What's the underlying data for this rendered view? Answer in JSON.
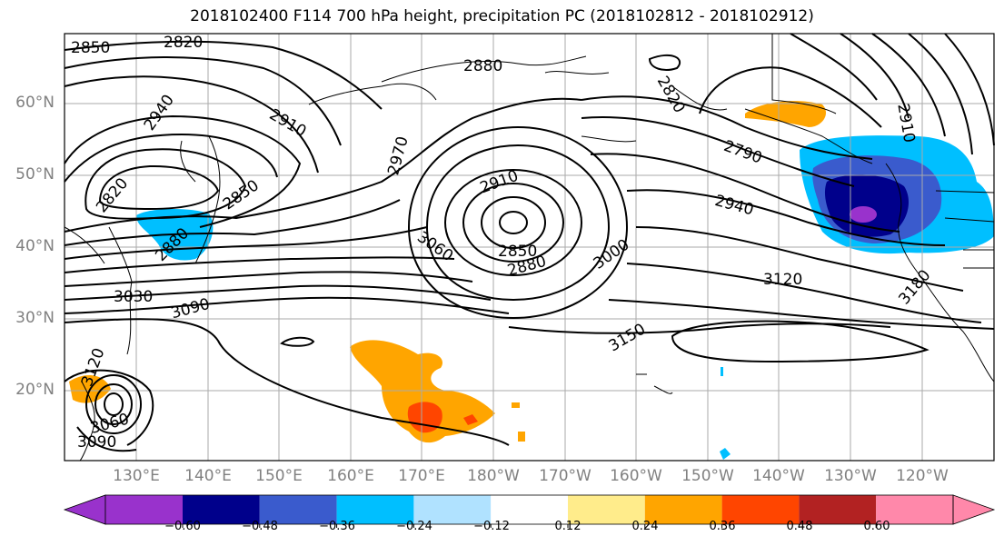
{
  "title": "2018102400 F114 700 hPa height, precipitation PC (2018102812 - 2018102912)",
  "lat_labels": [
    "60°N",
    "50°N",
    "40°N",
    "30°N",
    "20°N"
  ],
  "lon_labels": [
    "130°E",
    "140°E",
    "150°E",
    "160°E",
    "170°E",
    "180°W",
    "170°W",
    "160°W",
    "150°W",
    "140°W",
    "130°W",
    "120°W"
  ],
  "contour_labels": [
    "2850",
    "2820",
    "2880",
    "2820",
    "2940",
    "2910",
    "2970",
    "2910",
    "2790",
    "2910",
    "2820",
    "2850",
    "2880",
    "2940",
    "3060",
    "2850",
    "2880",
    "3000",
    "3120",
    "3180",
    "3030",
    "3090",
    "3150",
    "3120",
    "3060",
    "3090"
  ],
  "colorbar": {
    "ticks": [
      "−0.60",
      "−0.48",
      "−0.36",
      "−0.24",
      "−0.12",
      "0.12",
      "0.24",
      "0.36",
      "0.48",
      "0.60"
    ],
    "colors": [
      "#9932cc",
      "#00008b",
      "#3a5bcd",
      "#00bfff",
      "#b0e2ff",
      "#ffffff",
      "#ffec8b",
      "#ffa500",
      "#ff4500",
      "#b22222",
      "#ff88aa",
      "#ff88aa"
    ]
  },
  "field_colors": {
    "neg_light": "#00bfff",
    "neg_mid": "#3a5bcd",
    "neg_dark": "#00008b",
    "neg_extreme": "#9932cc",
    "pos_light": "#ffa500",
    "pos_mid": "#ff4500",
    "pos_pale": "#ffec8b"
  }
}
